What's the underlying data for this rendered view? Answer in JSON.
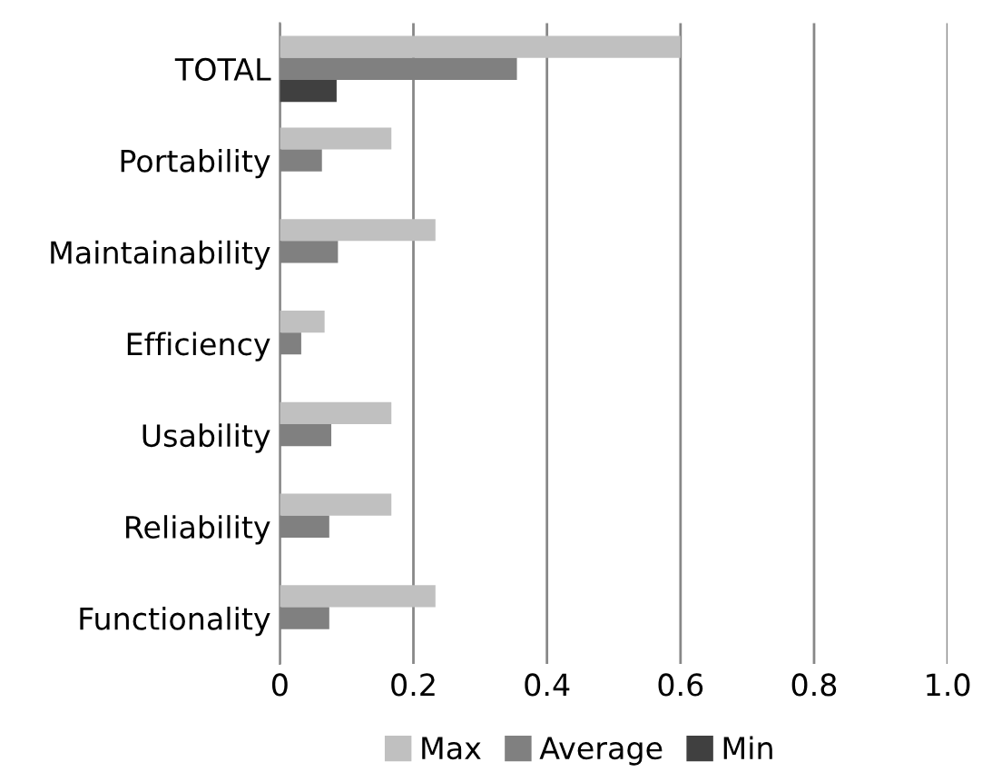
{
  "chart_data": {
    "type": "bar",
    "orientation": "horizontal",
    "categories": [
      "TOTAL",
      "Portability",
      "Maintainability",
      "Efficiency",
      "Usability",
      "Reliability",
      "Functionality"
    ],
    "series": [
      {
        "name": "Max",
        "color": "#c0c0c0",
        "values": [
          0.6,
          0.167,
          0.233,
          0.067,
          0.167,
          0.167,
          0.233
        ]
      },
      {
        "name": "Average",
        "color": "#808080",
        "values": [
          0.355,
          0.063,
          0.087,
          0.032,
          0.077,
          0.074,
          0.074
        ]
      },
      {
        "name": "Min",
        "color": "#404040",
        "values": [
          0.085,
          0,
          0,
          0,
          0,
          0,
          0
        ]
      }
    ],
    "xlim": [
      0,
      1
    ],
    "xticks": [
      0,
      0.2,
      0.4,
      0.6,
      0.8,
      {
        "value": 1,
        "label": "1.0"
      }
    ],
    "grid": "x",
    "legend": "bottom"
  }
}
